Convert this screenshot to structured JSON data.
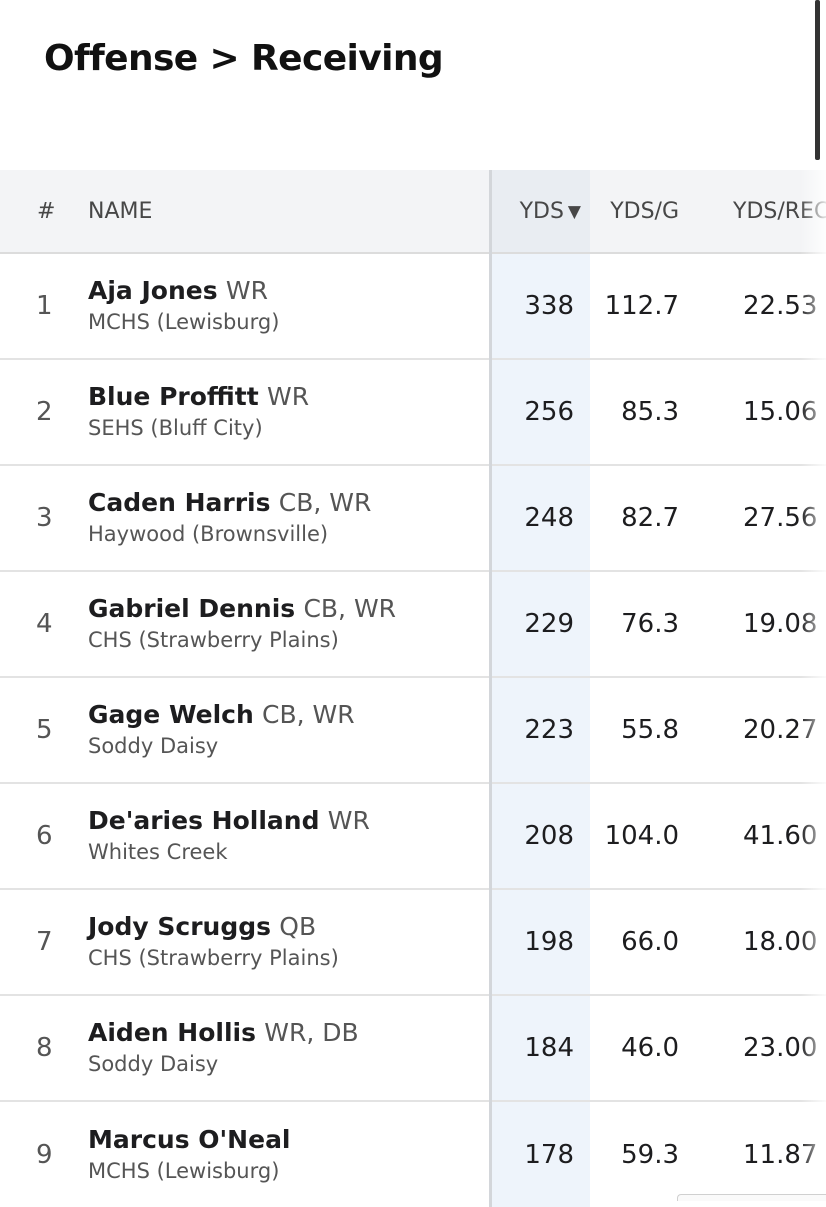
{
  "header": {
    "title": "Offense > Receiving"
  },
  "table": {
    "columns": {
      "rank": "#",
      "name": "NAME",
      "yds": "YDS",
      "yds_sort_icon": "sort-descending-icon",
      "yds_sort_glyph": "▼",
      "ydsg": "YDS/G",
      "ydsrec": "YDS/REC"
    },
    "rows": [
      {
        "rank": "1",
        "name": "Aja Jones",
        "position": "WR",
        "school": "MCHS (Lewisburg)",
        "yds": "338",
        "ydsg": "112.7",
        "ydsrec": "22.53"
      },
      {
        "rank": "2",
        "name": "Blue Proffitt",
        "position": "WR",
        "school": "SEHS (Bluff City)",
        "yds": "256",
        "ydsg": "85.3",
        "ydsrec": "15.06"
      },
      {
        "rank": "3",
        "name": "Caden Harris",
        "position": "CB, WR",
        "school": "Haywood (Brownsville)",
        "yds": "248",
        "ydsg": "82.7",
        "ydsrec": "27.56"
      },
      {
        "rank": "4",
        "name": "Gabriel Dennis",
        "position": "CB, WR",
        "school": "CHS (Strawberry Plains)",
        "yds": "229",
        "ydsg": "76.3",
        "ydsrec": "19.08"
      },
      {
        "rank": "5",
        "name": "Gage Welch",
        "position": "CB, WR",
        "school": "Soddy Daisy",
        "yds": "223",
        "ydsg": "55.8",
        "ydsrec": "20.27"
      },
      {
        "rank": "6",
        "name": "De'aries Holland",
        "position": "WR",
        "school": "Whites Creek",
        "yds": "208",
        "ydsg": "104.0",
        "ydsrec": "41.60"
      },
      {
        "rank": "7",
        "name": "Jody Scruggs",
        "position": "QB",
        "school": "CHS (Strawberry Plains)",
        "yds": "198",
        "ydsg": "66.0",
        "ydsrec": "18.00"
      },
      {
        "rank": "8",
        "name": "Aiden Hollis",
        "position": "WR, DB",
        "school": "Soddy Daisy",
        "yds": "184",
        "ydsg": "46.0",
        "ydsrec": "23.00"
      },
      {
        "rank": "9",
        "name": "Marcus O'Neal",
        "position": "",
        "school": "MCHS (Lewisburg)",
        "yds": "178",
        "ydsg": "59.3",
        "ydsrec": "11.87"
      }
    ]
  }
}
